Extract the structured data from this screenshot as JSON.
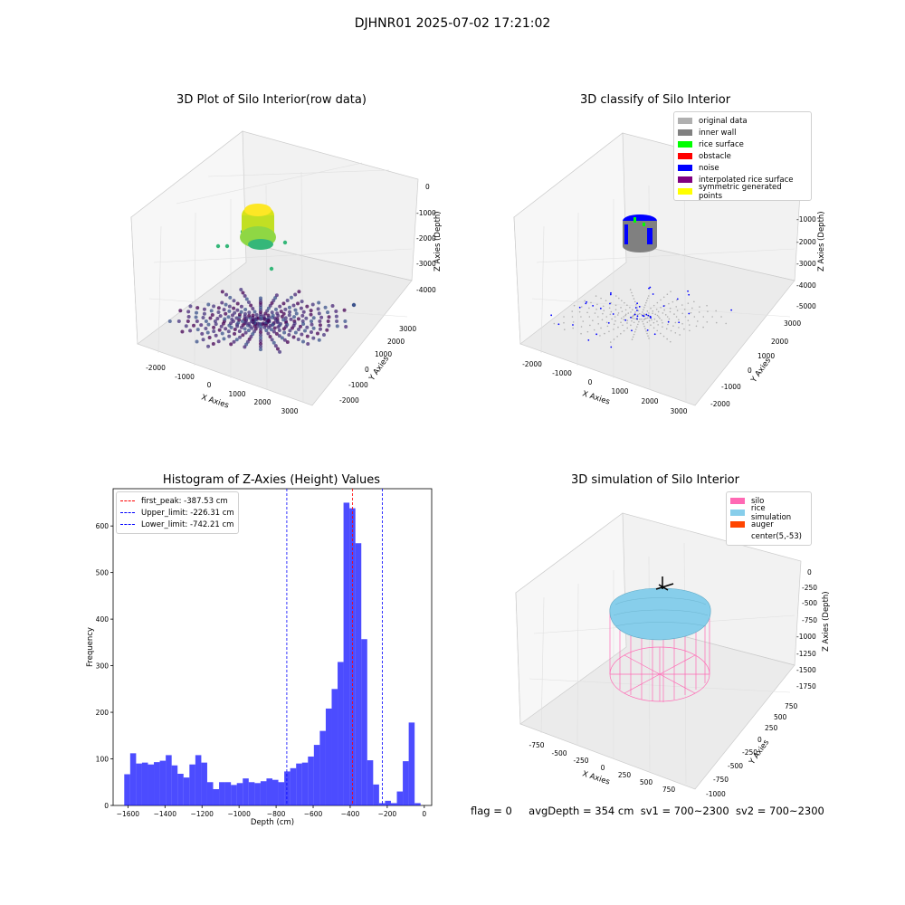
{
  "figure_title": "DJHNR01 2025-07-02 17:21:02",
  "status": {
    "flag": "flag = 0",
    "avg_depth": "avgDepth = 354 cm",
    "sv1": "sv1 = 700~2300",
    "sv2": "sv2 = 700~2300"
  },
  "panels": {
    "raw": {
      "title": "3D Plot of Silo Interior(row data)",
      "xlabel": "X Axies",
      "ylabel": "Y Axies",
      "zlabel": "Z Axies (Depth)",
      "xticks": [
        "-2000",
        "-1000",
        "0",
        "1000",
        "2000",
        "3000"
      ],
      "yticks": [
        "-2000",
        "-1000",
        "0",
        "1000",
        "2000",
        "3000"
      ],
      "zticks": [
        "0",
        "-1000",
        "-2000",
        "-3000",
        "-4000"
      ]
    },
    "classify": {
      "title": "3D classify of Silo Interior",
      "xlabel": "X Axies",
      "ylabel": "Y Axies",
      "zlabel": "Z Axies (Depth)",
      "xticks": [
        "-2000",
        "-1000",
        "0",
        "1000",
        "2000",
        "3000"
      ],
      "yticks": [
        "-2000",
        "-1000",
        "0",
        "1000",
        "2000",
        "3000"
      ],
      "zticks": [
        "0",
        "-1000",
        "-2000",
        "-3000",
        "-4000",
        "-5000"
      ],
      "legend": [
        {
          "label": "original data",
          "color": "#b0b0b0"
        },
        {
          "label": "inner wall",
          "color": "#808080"
        },
        {
          "label": "rice surface",
          "color": "#00ff00"
        },
        {
          "label": "obstacle",
          "color": "#ff0000"
        },
        {
          "label": "noise",
          "color": "#0000ff"
        },
        {
          "label": "interpolated rice surface",
          "color": "#800080"
        },
        {
          "label": "symmetric generated points",
          "color": "#ffff00"
        }
      ]
    },
    "simulation": {
      "title": "3D simulation of Silo Interior",
      "xlabel": "X Axies",
      "ylabel": "Y Axies",
      "zlabel": "Z Axies (Depth)",
      "xticks": [
        "-750",
        "-500",
        "-250",
        "0",
        "250",
        "500",
        "750"
      ],
      "yticks": [
        "-1000",
        "-750",
        "-500",
        "-250",
        "0",
        "250",
        "500",
        "750"
      ],
      "zticks": [
        "0",
        "-250",
        "-500",
        "-750",
        "-1000",
        "-1250",
        "-1500",
        "-1750"
      ],
      "legend": [
        {
          "label": "silo",
          "color": "#ff69b4"
        },
        {
          "label": "rice simulation",
          "color": "#87ceeb"
        },
        {
          "label": "auger",
          "color": "#ff4500"
        },
        {
          "label": "center(5,-53)",
          "color": "none"
        }
      ]
    }
  },
  "chart_data": [
    {
      "type": "bar",
      "title": "Histogram of Z-Axies (Height) Values",
      "xlabel": "Depth (cm)",
      "ylabel": "Frequency",
      "xlim": [
        -1680,
        40
      ],
      "ylim": [
        0,
        680
      ],
      "xticks": [
        -1600,
        -1400,
        -1200,
        -1000,
        -800,
        -600,
        -400,
        -200,
        0
      ],
      "yticks": [
        0,
        100,
        200,
        300,
        400,
        500,
        600
      ],
      "bin_start": -1620,
      "bin_width": 32,
      "bar_color": "#0000ff",
      "values": [
        67,
        112,
        90,
        92,
        88,
        93,
        96,
        108,
        86,
        68,
        60,
        88,
        108,
        92,
        50,
        35,
        50,
        50,
        44,
        48,
        58,
        50,
        48,
        52,
        58,
        55,
        50,
        73,
        80,
        90,
        92,
        105,
        130,
        160,
        208,
        250,
        308,
        650,
        638,
        563,
        357,
        97,
        45,
        5,
        10,
        5,
        30,
        95,
        178,
        5
      ],
      "lines": [
        {
          "label": "first_peak: -387.53 cm",
          "x": -387.53,
          "color": "#ff0000"
        },
        {
          "label": "Upper_limit: -226.31 cm",
          "x": -226.31,
          "color": "#0000ff"
        },
        {
          "label": "Lower_limit: -742.21 cm",
          "x": -742.21,
          "color": "#0000ff"
        }
      ]
    }
  ]
}
